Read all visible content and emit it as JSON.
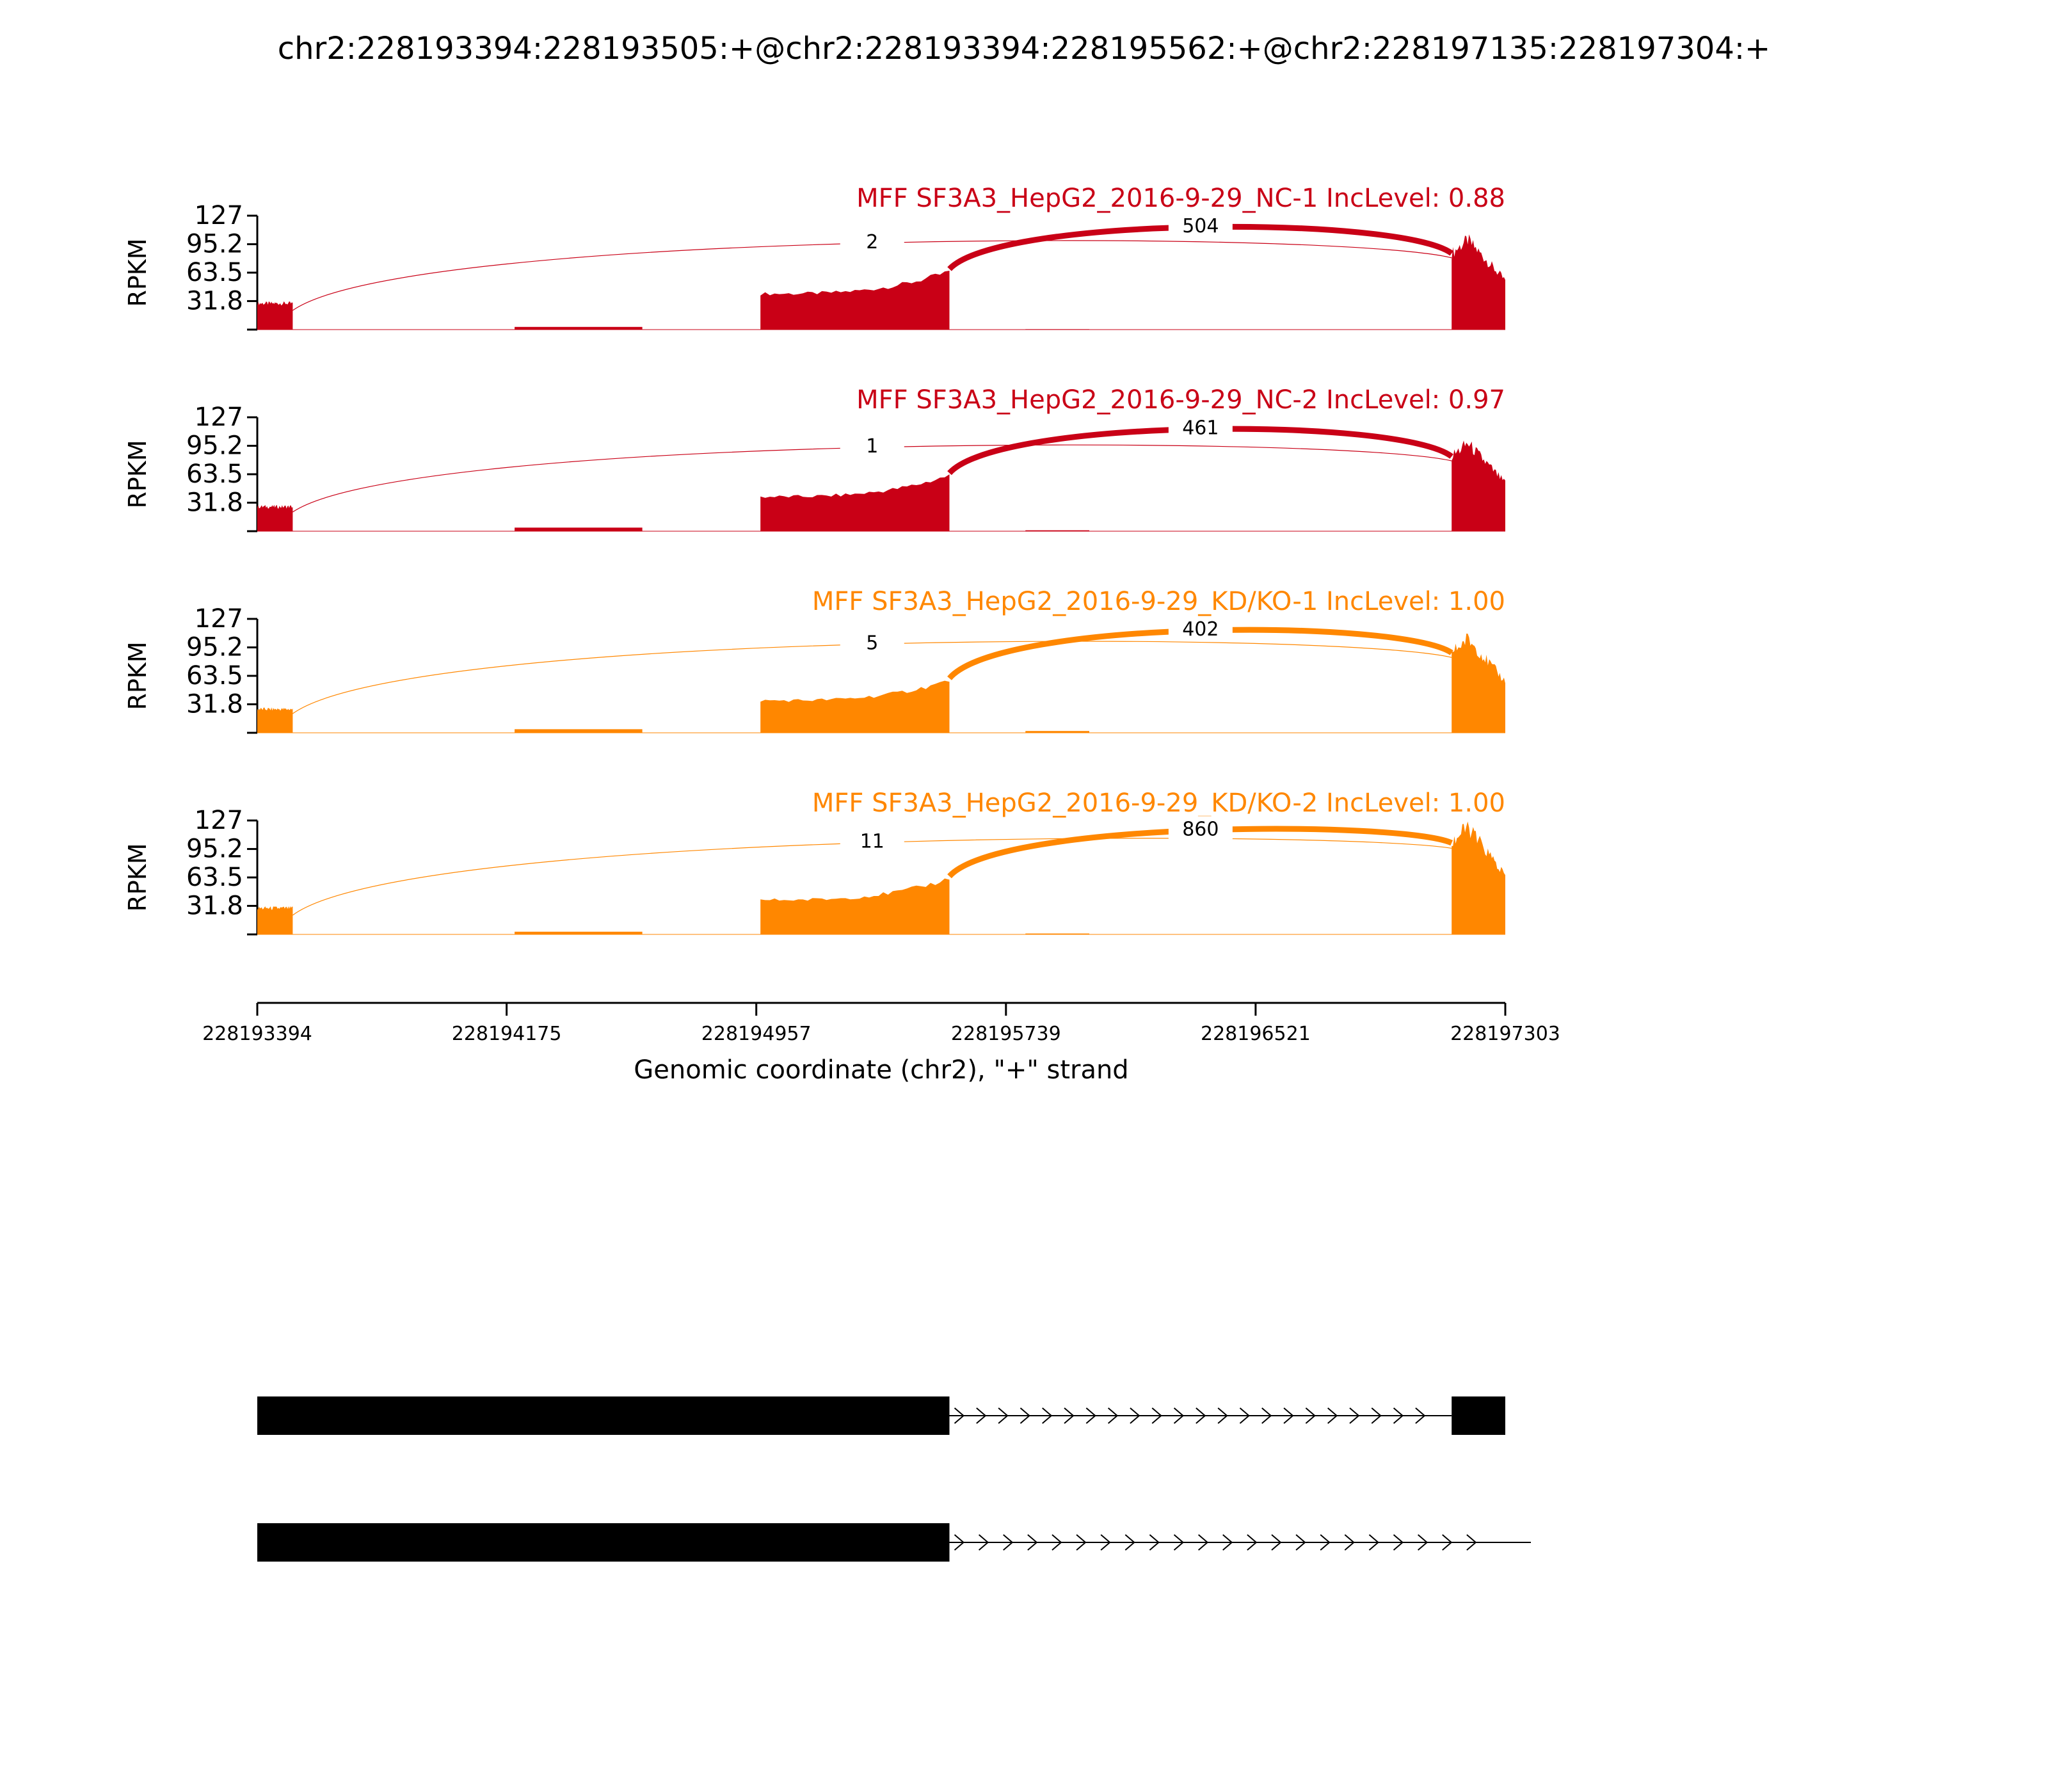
{
  "chart_data": {
    "type": "area",
    "title": "chr2:228193394:228193505:+@chr2:228193394:228195562:+@chr2:228197135:228197304:+",
    "ylabel": "RPKM",
    "xlabel": "Genomic coordinate (chr2), \"+\" strand",
    "xlim": [
      228193394,
      228197303
    ],
    "x_ticks": [
      "228193394",
      "228194175",
      "228194957",
      "228195739",
      "228196521",
      "228197303"
    ],
    "ylim": [
      0,
      127
    ],
    "y_ticks": [
      "127",
      "95.2",
      "63.5",
      "31.8"
    ],
    "exons": [
      {
        "start": 228193394,
        "end": 228193505
      },
      {
        "start": 228194970,
        "end": 228195562
      },
      {
        "start": 228197135,
        "end": 228197304
      }
    ],
    "tracks": [
      {
        "label": "MFF SF3A3_HepG2_2016-9-29_NC-1 IncLevel: 0.88",
        "color": "#c90016",
        "exon_levels": [
          30,
          50,
          100
        ],
        "intron_levels": [
          3,
          0.5
        ],
        "junctions": [
          {
            "count": "2",
            "start": 228193505,
            "end": 228197135,
            "height": 0.88
          },
          {
            "count": "504",
            "start": 228195562,
            "end": 228197135,
            "height": 1.0
          }
        ]
      },
      {
        "label": "MFF SF3A3_HepG2_2016-9-29_NC-2 IncLevel: 0.97",
        "color": "#c90016",
        "exon_levels": [
          28,
          48,
          98
        ],
        "intron_levels": [
          4,
          1
        ],
        "junctions": [
          {
            "count": "1",
            "start": 228193505,
            "end": 228197135,
            "height": 0.85
          },
          {
            "count": "461",
            "start": 228195562,
            "end": 228197135,
            "height": 1.0
          }
        ]
      },
      {
        "label": "MFF SF3A3_HepG2_2016-9-29_KD/KO-1 IncLevel: 1.00",
        "color": "#ff8700",
        "exon_levels": [
          27,
          45,
          105
        ],
        "intron_levels": [
          4,
          2
        ],
        "junctions": [
          {
            "count": "5",
            "start": 228193505,
            "end": 228197135,
            "height": 0.9
          },
          {
            "count": "402",
            "start": 228195562,
            "end": 228197135,
            "height": 1.0
          }
        ]
      },
      {
        "label": "MFF SF3A3_HepG2_2016-9-29_KD/KO-2 IncLevel: 1.00",
        "color": "#ff8700",
        "exon_levels": [
          30,
          48,
          120
        ],
        "intron_levels": [
          3,
          1
        ],
        "junctions": [
          {
            "count": "11",
            "start": 228193505,
            "end": 228197135,
            "height": 0.92
          },
          {
            "count": "860",
            "start": 228195562,
            "end": 228197135,
            "height": 1.0
          }
        ]
      }
    ],
    "isoforms": [
      {
        "blocks": [
          {
            "start": 228193394,
            "end": 228195562
          },
          {
            "start": 228197135,
            "end": 228197304
          }
        ],
        "intron": {
          "start": 228195562,
          "end": 228197135
        }
      },
      {
        "blocks": [
          {
            "start": 228193394,
            "end": 228195562
          }
        ],
        "intron": {
          "start": 228195562,
          "end": 228197303
        }
      }
    ]
  }
}
